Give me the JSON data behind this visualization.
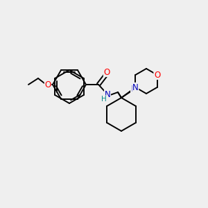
{
  "background_color": "#efefef",
  "bond_color": "#000000",
  "atom_colors": {
    "O": "#ff0000",
    "N": "#0000bb",
    "H": "#008888",
    "C": "#000000"
  },
  "figsize": [
    3.0,
    3.0
  ],
  "dpi": 100
}
